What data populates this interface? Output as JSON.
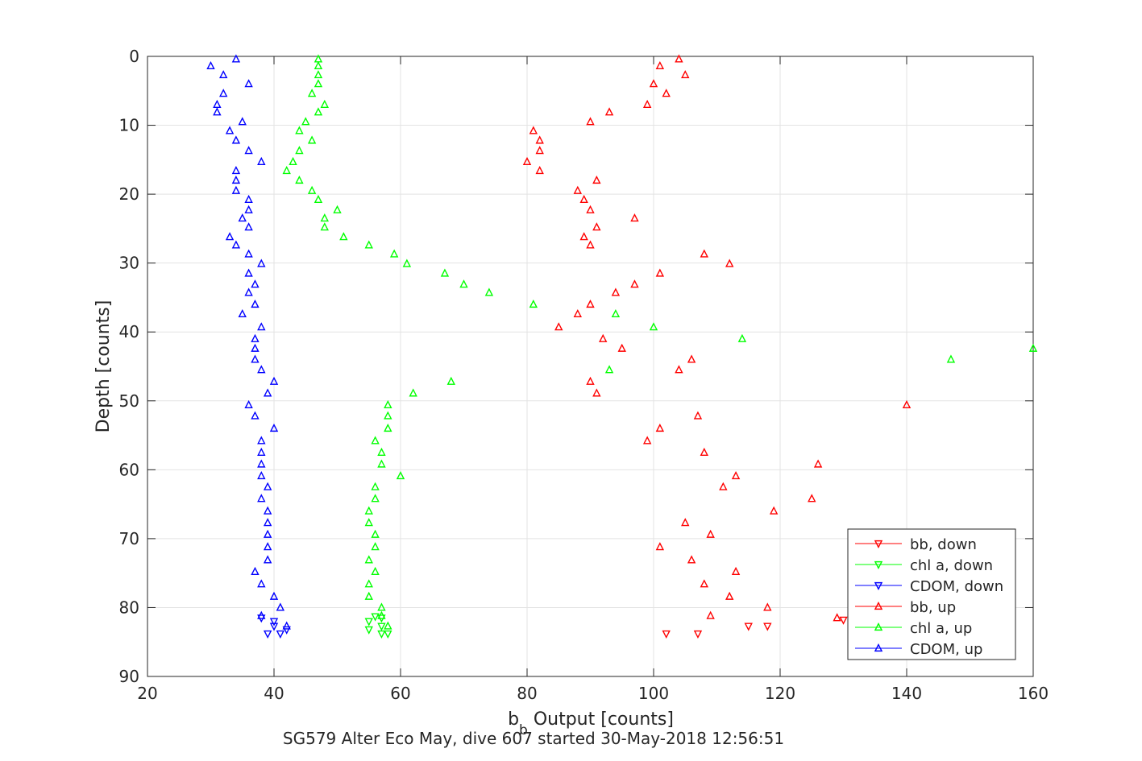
{
  "chart_data": {
    "type": "scatter",
    "title": "",
    "xlabel_main": "b",
    "xlabel_sub": "b",
    "xlabel_rest": " Output [counts]",
    "caption": "SG579 Alter Eco May, dive 607 started 30-May-2018 12:56:51",
    "ylabel": "Depth [counts]",
    "xlim": [
      20,
      160
    ],
    "ylim": [
      0,
      90
    ],
    "y_reversed": true,
    "grid": true,
    "legend_position": "bottom-right",
    "xticks": [
      20,
      40,
      60,
      80,
      100,
      120,
      140,
      160
    ],
    "yticks": [
      0,
      10,
      20,
      30,
      40,
      50,
      60,
      70,
      80,
      90
    ],
    "colors": {
      "bb": "#ff0000",
      "chl": "#00ff00",
      "cdom": "#0000ff"
    },
    "series": [
      {
        "name": "bb, down",
        "color": "#ff0000",
        "marker": "triangle-down",
        "points": [
          [
            102,
            83.8
          ],
          [
            107,
            83.8
          ],
          [
            115,
            82.7
          ],
          [
            118,
            82.7
          ],
          [
            130,
            81.8
          ]
        ]
      },
      {
        "name": "chl a, down",
        "color": "#00ff00",
        "marker": "triangle-down",
        "points": [
          [
            55,
            83.2
          ],
          [
            57,
            83.8
          ],
          [
            58,
            83.8
          ],
          [
            55,
            82.0
          ],
          [
            57,
            82.7
          ],
          [
            56,
            81.3
          ],
          [
            57,
            81.5
          ]
        ]
      },
      {
        "name": "CDOM, down",
        "color": "#0000ff",
        "marker": "triangle-down",
        "points": [
          [
            39,
            83.8
          ],
          [
            41,
            83.8
          ],
          [
            42,
            83.2
          ],
          [
            40,
            82.7
          ],
          [
            40,
            82.0
          ],
          [
            38,
            81.5
          ]
        ]
      },
      {
        "name": "bb, up",
        "color": "#ff0000",
        "marker": "triangle-up",
        "points": [
          [
            104,
            0.4
          ],
          [
            101,
            1.4
          ],
          [
            105,
            2.7
          ],
          [
            100,
            4.0
          ],
          [
            102,
            5.4
          ],
          [
            99,
            7.0
          ],
          [
            93,
            8.1
          ],
          [
            90,
            9.5
          ],
          [
            81,
            10.8
          ],
          [
            82,
            12.2
          ],
          [
            82,
            13.7
          ],
          [
            80,
            15.3
          ],
          [
            82,
            16.6
          ],
          [
            91,
            18.0
          ],
          [
            88,
            19.5
          ],
          [
            89,
            20.8
          ],
          [
            90,
            22.3
          ],
          [
            97,
            23.5
          ],
          [
            91,
            24.8
          ],
          [
            89,
            26.2
          ],
          [
            90,
            27.4
          ],
          [
            108,
            28.7
          ],
          [
            112,
            30.1
          ],
          [
            101,
            31.5
          ],
          [
            97,
            33.1
          ],
          [
            94,
            34.3
          ],
          [
            90,
            36.0
          ],
          [
            88,
            37.4
          ],
          [
            85,
            39.3
          ],
          [
            92,
            41.0
          ],
          [
            95,
            42.4
          ],
          [
            106,
            44.0
          ],
          [
            104,
            45.5
          ],
          [
            90,
            47.2
          ],
          [
            91,
            48.9
          ],
          [
            140,
            50.6
          ],
          [
            107,
            52.2
          ],
          [
            101,
            54.0
          ],
          [
            99,
            55.8
          ],
          [
            108,
            57.5
          ],
          [
            126,
            59.2
          ],
          [
            113,
            60.9
          ],
          [
            111,
            62.5
          ],
          [
            125,
            64.2
          ],
          [
            119,
            66.0
          ],
          [
            105,
            67.7
          ],
          [
            109,
            69.4
          ],
          [
            101,
            71.2
          ],
          [
            106,
            73.1
          ],
          [
            113,
            74.8
          ],
          [
            108,
            76.6
          ],
          [
            112,
            78.4
          ],
          [
            118,
            80.0
          ],
          [
            109,
            81.2
          ],
          [
            129,
            81.5
          ]
        ]
      },
      {
        "name": "chl a, up",
        "color": "#00ff00",
        "marker": "triangle-up",
        "points": [
          [
            47,
            0.4
          ],
          [
            47,
            1.4
          ],
          [
            47,
            2.7
          ],
          [
            47,
            4.0
          ],
          [
            46,
            5.4
          ],
          [
            48,
            7.0
          ],
          [
            47,
            8.1
          ],
          [
            45,
            9.5
          ],
          [
            44,
            10.8
          ],
          [
            46,
            12.2
          ],
          [
            44,
            13.7
          ],
          [
            43,
            15.3
          ],
          [
            42,
            16.6
          ],
          [
            44,
            18.0
          ],
          [
            46,
            19.5
          ],
          [
            47,
            20.8
          ],
          [
            50,
            22.3
          ],
          [
            48,
            23.5
          ],
          [
            48,
            24.8
          ],
          [
            51,
            26.2
          ],
          [
            55,
            27.4
          ],
          [
            59,
            28.7
          ],
          [
            61,
            30.1
          ],
          [
            67,
            31.5
          ],
          [
            70,
            33.1
          ],
          [
            74,
            34.3
          ],
          [
            81,
            36.0
          ],
          [
            94,
            37.4
          ],
          [
            100,
            39.3
          ],
          [
            114,
            41.0
          ],
          [
            160,
            42.4
          ],
          [
            147,
            44.0
          ],
          [
            93,
            45.5
          ],
          [
            68,
            47.2
          ],
          [
            62,
            48.9
          ],
          [
            58,
            50.6
          ],
          [
            58,
            52.2
          ],
          [
            58,
            54.0
          ],
          [
            56,
            55.8
          ],
          [
            57,
            57.5
          ],
          [
            57,
            59.2
          ],
          [
            60,
            60.9
          ],
          [
            56,
            62.5
          ],
          [
            56,
            64.2
          ],
          [
            55,
            66.0
          ],
          [
            55,
            67.7
          ],
          [
            56,
            69.4
          ],
          [
            56,
            71.2
          ],
          [
            55,
            73.1
          ],
          [
            56,
            74.8
          ],
          [
            55,
            76.6
          ],
          [
            55,
            78.4
          ],
          [
            57,
            80.0
          ],
          [
            57,
            81.2
          ],
          [
            58,
            82.7
          ]
        ]
      },
      {
        "name": "CDOM, up",
        "color": "#0000ff",
        "marker": "triangle-up",
        "points": [
          [
            34,
            0.4
          ],
          [
            30,
            1.4
          ],
          [
            32,
            2.7
          ],
          [
            36,
            4.0
          ],
          [
            32,
            5.4
          ],
          [
            31,
            7.0
          ],
          [
            31,
            8.1
          ],
          [
            35,
            9.5
          ],
          [
            33,
            10.8
          ],
          [
            34,
            12.2
          ],
          [
            36,
            13.7
          ],
          [
            38,
            15.3
          ],
          [
            34,
            16.6
          ],
          [
            34,
            18.0
          ],
          [
            34,
            19.5
          ],
          [
            36,
            20.8
          ],
          [
            36,
            22.3
          ],
          [
            35,
            23.5
          ],
          [
            36,
            24.8
          ],
          [
            33,
            26.2
          ],
          [
            34,
            27.4
          ],
          [
            36,
            28.7
          ],
          [
            38,
            30.1
          ],
          [
            36,
            31.5
          ],
          [
            37,
            33.1
          ],
          [
            36,
            34.3
          ],
          [
            37,
            36.0
          ],
          [
            35,
            37.4
          ],
          [
            38,
            39.3
          ],
          [
            37,
            41.0
          ],
          [
            37,
            42.4
          ],
          [
            37,
            44.0
          ],
          [
            38,
            45.5
          ],
          [
            40,
            47.2
          ],
          [
            39,
            48.9
          ],
          [
            36,
            50.6
          ],
          [
            37,
            52.2
          ],
          [
            40,
            54.0
          ],
          [
            38,
            55.8
          ],
          [
            38,
            57.5
          ],
          [
            38,
            59.2
          ],
          [
            38,
            60.9
          ],
          [
            39,
            62.5
          ],
          [
            38,
            64.2
          ],
          [
            39,
            66.0
          ],
          [
            39,
            67.7
          ],
          [
            39,
            69.4
          ],
          [
            39,
            71.2
          ],
          [
            39,
            73.1
          ],
          [
            37,
            74.8
          ],
          [
            38,
            76.6
          ],
          [
            40,
            78.4
          ],
          [
            41,
            80.0
          ],
          [
            38,
            81.2
          ],
          [
            42,
            82.7
          ]
        ]
      }
    ]
  }
}
